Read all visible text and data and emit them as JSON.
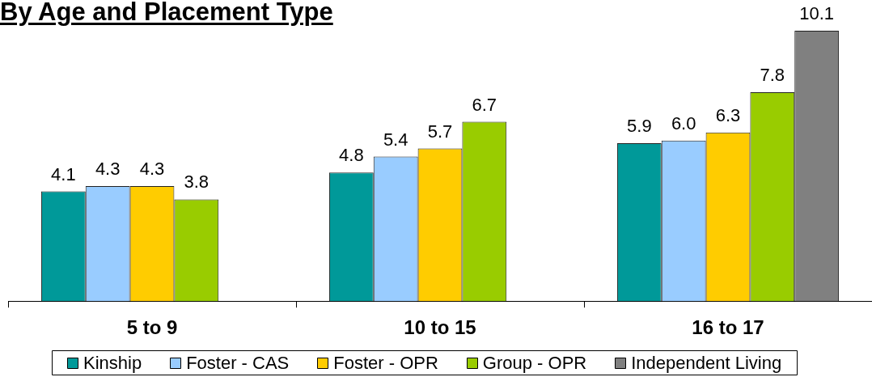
{
  "chart_data": {
    "type": "bar",
    "title": "By Age and Placement Type",
    "categories": [
      "5 to 9",
      "10 to 15",
      "16 to 17"
    ],
    "series": [
      {
        "name": "Kinship",
        "color": "#009999",
        "values": [
          4.1,
          4.8,
          5.9
        ],
        "value_labels": [
          "4.1",
          "4.8",
          "5.9"
        ]
      },
      {
        "name": "Foster - CAS",
        "color": "#99ccff",
        "values": [
          4.3,
          5.4,
          6.0
        ],
        "value_labels": [
          "4.3",
          "5.4",
          "6.0"
        ]
      },
      {
        "name": "Foster - OPR",
        "color": "#ffcc00",
        "values": [
          4.3,
          5.7,
          6.3
        ],
        "value_labels": [
          "4.3",
          "5.7",
          "6.3"
        ]
      },
      {
        "name": "Group - OPR",
        "color": "#99cc00",
        "values": [
          3.8,
          6.7,
          7.8
        ],
        "value_labels": [
          "3.8",
          "6.7",
          "7.8"
        ]
      },
      {
        "name": "Independent Living",
        "color": "#808080",
        "values": [
          null,
          null,
          10.1
        ],
        "value_labels": [
          null,
          null,
          "10.1"
        ]
      }
    ],
    "legend": "bottom"
  }
}
